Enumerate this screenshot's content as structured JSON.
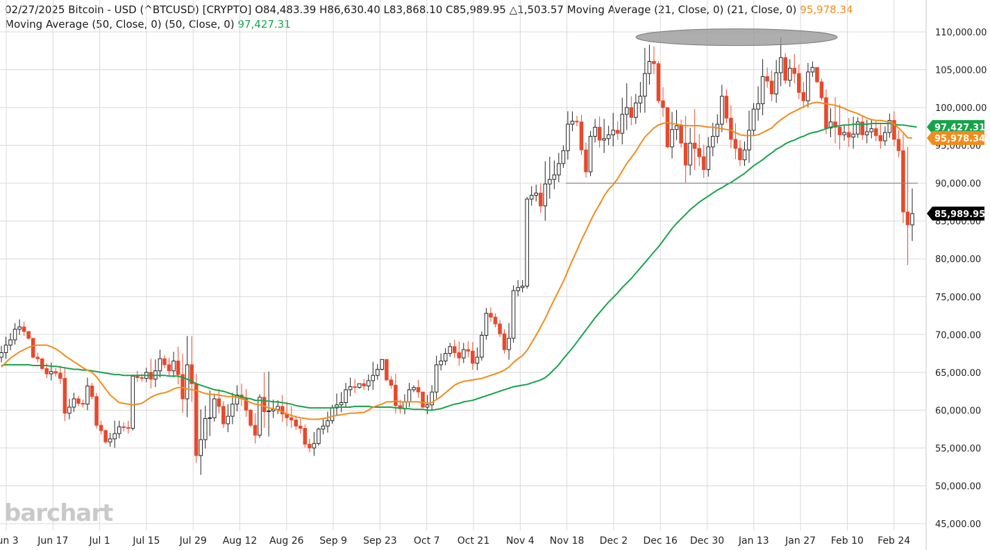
{
  "header": {
    "date": "02/27/2025",
    "symbol_label": "Bitcoin - USD (^BTCUSD) [CRYPTO]",
    "open": "O84,483.39",
    "high": "H86,630.40",
    "low": "L83,868.10",
    "close": "C85,989.95",
    "change": "△1,503.57",
    "ma21_label": "Moving Average (21, Close, 0)  (21, Close, 0)",
    "ma21_value": "95,978.34",
    "ma50_label": "Moving Average (50, Close, 0)  (50, Close, 0)",
    "ma50_value": "97,427.31"
  },
  "logo": "barchart",
  "colors": {
    "up_candle": "#ffffff",
    "down_candle": "#e8492b",
    "ma21": "#f28c1a",
    "ma50": "#16a34a",
    "grid": "#d9d9d9",
    "price_tag": "#000000"
  },
  "chart_data": {
    "type": "candlestick",
    "title": "Bitcoin - USD (^BTCUSD) [CRYPTO]",
    "y_scale": "linear",
    "ylim": [
      45000,
      111500
    ],
    "y_ticks": [
      "110,000.00",
      "105,000.00",
      "100,000.00",
      "95,000.00",
      "90,000.00",
      "85,000.00",
      "80,000.00",
      "75,000.00",
      "70,000.00",
      "65,000.00",
      "60,000.00",
      "55,000.00",
      "50,000.00",
      "45,000.00"
    ],
    "x_tick_labels": [
      "Jun 3",
      "Jun 17",
      "Jul 1",
      "Jul 15",
      "Jul 29",
      "Aug 12",
      "Aug 26",
      "Sep 9",
      "Sep 23",
      "Oct 7",
      "Oct 21",
      "Nov 4",
      "Nov 18",
      "Dec 2",
      "Dec 16",
      "Dec 30",
      "Jan 13",
      "Jan 27",
      "Feb 10",
      "Feb 24"
    ],
    "grid": true,
    "candles_close": [
      67600,
      68600,
      69300,
      70700,
      71000,
      70400,
      69500,
      67000,
      66800,
      65500,
      64800,
      65100,
      64900,
      64200,
      59600,
      60400,
      61500,
      60900,
      60800,
      63200,
      61800,
      58000,
      57300,
      55800,
      56200,
      56900,
      57800,
      57700,
      57600,
      64500,
      64300,
      64200,
      65000,
      64100,
      65200,
      66800,
      66000,
      65200,
      66500,
      64700,
      61500,
      66000,
      63500,
      54000,
      56100,
      58900,
      59000,
      61500,
      60500,
      58200,
      59200,
      60800,
      62000,
      61600,
      60000,
      58000,
      56700,
      61700,
      59800,
      59900,
      60100,
      60500,
      59500,
      59000,
      58700,
      57900,
      57600,
      55500,
      55000,
      55600,
      57500,
      57900,
      58600,
      60300,
      60700,
      61000,
      62700,
      63100,
      63000,
      63500,
      63200,
      63900,
      64600,
      65400,
      66700,
      64000,
      63300,
      60600,
      60200,
      61100,
      62700,
      63000,
      62400,
      60400,
      60700,
      62400,
      66000,
      66500,
      67500,
      68400,
      67600,
      66900,
      68000,
      67800,
      66200,
      67000,
      69900,
      72800,
      72300,
      71400,
      70100,
      68000,
      69500,
      75800,
      76200,
      76400,
      87900,
      88400,
      88700,
      87000,
      89900,
      90500,
      91100,
      92600,
      94300,
      97800,
      98200,
      98100,
      94400,
      91500,
      96200,
      97400,
      95700,
      95900,
      96400,
      97000,
      96600,
      99100,
      100000,
      98700,
      100600,
      101500,
      104500,
      106100,
      105800,
      100900,
      100000,
      94800,
      97100,
      97600,
      95300,
      92400,
      95300,
      94600,
      93500,
      91800,
      94800,
      96200,
      97800,
      101500,
      98600,
      95800,
      94600,
      93100,
      94400,
      97000,
      99800,
      100500,
      104100,
      103500,
      101800,
      104600,
      106600,
      103600,
      105200,
      104500,
      102000,
      100900,
      104700,
      105300,
      103400,
      101300,
      97300,
      98100,
      97400,
      96400,
      96700,
      96100,
      96500,
      98100,
      96400,
      96800,
      97200,
      96300,
      95600,
      96700,
      98300,
      95800,
      94300,
      86200,
      84500,
      85990
    ],
    "candles_high": [
      68500,
      69700,
      70200,
      71500,
      72000,
      71700,
      70400,
      69400,
      67600,
      66800,
      66200,
      66300,
      65600,
      65900,
      65700,
      61500,
      62300,
      61900,
      61400,
      64300,
      63600,
      62300,
      58600,
      57500,
      57000,
      58600,
      58600,
      58400,
      58600,
      64700,
      65200,
      64800,
      65600,
      66800,
      66700,
      68000,
      67300,
      66900,
      67700,
      68400,
      67500,
      69800,
      69800,
      64800,
      60100,
      60600,
      62600,
      62100,
      62800,
      61200,
      60800,
      62300,
      63300,
      63500,
      62800,
      60200,
      59600,
      62100,
      65000,
      65100,
      61400,
      61300,
      62000,
      61100,
      60500,
      59300,
      58900,
      58100,
      56200,
      57100,
      57700,
      58800,
      59800,
      60700,
      62200,
      62400,
      63600,
      64300,
      64100,
      63500,
      64100,
      64700,
      66400,
      66100,
      66400,
      66300,
      64500,
      64800,
      61400,
      62100,
      63600,
      63300,
      64000,
      62300,
      62000,
      63300,
      67200,
      67500,
      68200,
      68900,
      69300,
      69100,
      68900,
      69100,
      69000,
      68300,
      70400,
      73500,
      73600,
      72800,
      71900,
      70700,
      71500,
      76500,
      77200,
      77200,
      88200,
      89600,
      89800,
      90000,
      92900,
      93500,
      93000,
      94000,
      95000,
      99500,
      99500,
      98900,
      99000,
      95400,
      96900,
      98500,
      98800,
      98500,
      97600,
      99300,
      98200,
      101300,
      103200,
      101500,
      101800,
      103400,
      107900,
      108300,
      108100,
      106100,
      102700,
      98500,
      99400,
      99700,
      98400,
      98900,
      97300,
      99800,
      96500,
      95100,
      96100,
      98000,
      99100,
      103000,
      102400,
      100300,
      97900,
      95700,
      95500,
      99600,
      100600,
      102800,
      106400,
      105300,
      104900,
      106300,
      109300,
      107200,
      106400,
      107100,
      105700,
      103400,
      105900,
      106100,
      105300,
      103800,
      102400,
      99900,
      101400,
      100400,
      97700,
      98600,
      98800,
      98700,
      99000,
      98400,
      98400,
      98200,
      97800,
      97500,
      99200,
      99500,
      97000,
      96500,
      94800,
      89300,
      86700
    ],
    "ma21_values": [
      65700,
      66300,
      66900,
      67300,
      67700,
      68000,
      68300,
      68500,
      68600,
      68600,
      68600,
      68400,
      68100,
      67700,
      67200,
      66800,
      66400,
      66000,
      65600,
      65300,
      65000,
      64400,
      63600,
      62800,
      62000,
      61500,
      61000,
      60900,
      60800,
      60700,
      60800,
      60900,
      61300,
      61700,
      62000,
      62200,
      62300,
      62500,
      62800,
      63000,
      63000,
      62800,
      62700,
      62600,
      62400,
      62200,
      62100,
      62100,
      62000,
      61900,
      61800,
      61800,
      61700,
      61500,
      61300,
      61000,
      60800,
      60700,
      60500,
      60300,
      60200,
      60000,
      59800,
      59500,
      59300,
      59100,
      59000,
      58900,
      58800,
      58800,
      58800,
      58900,
      59000,
      59200,
      59300,
      59400,
      59500,
      59600,
      59600,
      59700,
      59700,
      60000,
      60400,
      60600,
      60800,
      61100,
      61100,
      61200,
      61100,
      61100,
      61100,
      61100,
      61100,
      61000,
      60900,
      61000,
      61400,
      61800,
      62300,
      62800,
      63300,
      63600,
      63800,
      63900,
      64000,
      64100,
      64200,
      64400,
      64600,
      64800,
      65000,
      65300,
      65700,
      66300,
      66800,
      67200,
      67900,
      68900,
      69900,
      71000,
      72100,
      73400,
      74600,
      75800,
      77000,
      78400,
      79800,
      81100,
      82500,
      83700,
      85000,
      86200,
      87200,
      88300,
      89200,
      89800,
      90600,
      91600,
      92600,
      93400,
      94200,
      95200,
      96100,
      96700,
      97300,
      97700,
      97900,
      98000,
      97900,
      97800,
      97700,
      97600,
      97600,
      97600,
      97600,
      97500,
      97400,
      97400,
      97300,
      97200,
      97100,
      97000,
      96700,
      96400,
      96300,
      96300,
      96300,
      96400,
      96700,
      97000,
      97300,
      97900,
      98400,
      98800,
      99200,
      99500,
      99800,
      100100,
      100400,
      100600,
      100700,
      100600,
      100500,
      100400,
      100300,
      100100,
      99900,
      99600,
      99400,
      99200,
      98900,
      98600,
      98400,
      98300,
      98300,
      98200,
      98100,
      97800,
      97300,
      96700,
      96000,
      95978
    ],
    "ma50_values": [
      65900,
      66000,
      66000,
      66000,
      66000,
      66000,
      66000,
      65900,
      65900,
      65900,
      65900,
      65800,
      65800,
      65700,
      65600,
      65500,
      65400,
      65400,
      65300,
      65300,
      65200,
      65100,
      65000,
      64900,
      64800,
      64700,
      64700,
      64600,
      64600,
      64600,
      64600,
      64600,
      64600,
      64600,
      64600,
      64600,
      64600,
      64500,
      64500,
      64500,
      64300,
      64100,
      63800,
      63500,
      63300,
      63100,
      62900,
      62700,
      62600,
      62500,
      62300,
      62100,
      61900,
      61800,
      61600,
      61500,
      61300,
      61300,
      61200,
      61200,
      61100,
      61100,
      61000,
      60900,
      60800,
      60600,
      60500,
      60400,
      60300,
      60300,
      60300,
      60300,
      60300,
      60300,
      60400,
      60400,
      60400,
      60400,
      60500,
      60500,
      60500,
      60500,
      60400,
      60400,
      60400,
      60400,
      60400,
      60300,
      60300,
      60200,
      60200,
      60100,
      60100,
      60100,
      60000,
      60000,
      60100,
      60200,
      60400,
      60600,
      60800,
      60900,
      61100,
      61200,
      61300,
      61500,
      61700,
      61900,
      62100,
      62300,
      62500,
      62700,
      62900,
      63100,
      63200,
      63300,
      63400,
      63600,
      63800,
      64000,
      64300,
      64800,
      65400,
      66000,
      66800,
      67500,
      68200,
      69000,
      69800,
      70600,
      71400,
      72200,
      72900,
      73600,
      74300,
      74900,
      75500,
      76200,
      76800,
      77400,
      78100,
      78800,
      79500,
      80200,
      80900,
      81600,
      82400,
      83200,
      84000,
      84700,
      85300,
      85900,
      86500,
      87000,
      87500,
      87900,
      88300,
      88700,
      89100,
      89400,
      89800,
      90100,
      90500,
      90900,
      91300,
      91800,
      92300,
      92700,
      93100,
      93600,
      94000,
      94500,
      94800,
      95200,
      95500,
      95700,
      96000,
      96200,
      96500,
      96700,
      96800,
      97000,
      97200,
      97400,
      97500,
      97600,
      97700,
      97700,
      97800,
      97800,
      97800,
      97800,
      97900,
      97900,
      97900,
      97900,
      97900,
      97800,
      97700,
      97700,
      97600,
      97500,
      97427
    ],
    "annotations": {
      "price_tag": "85,989.95",
      "ma50_tag": "97,427.31",
      "ma21_tag": "95,978.34",
      "horizontal_line_value": 90000,
      "highlight_ellipse_value": 109300
    }
  }
}
